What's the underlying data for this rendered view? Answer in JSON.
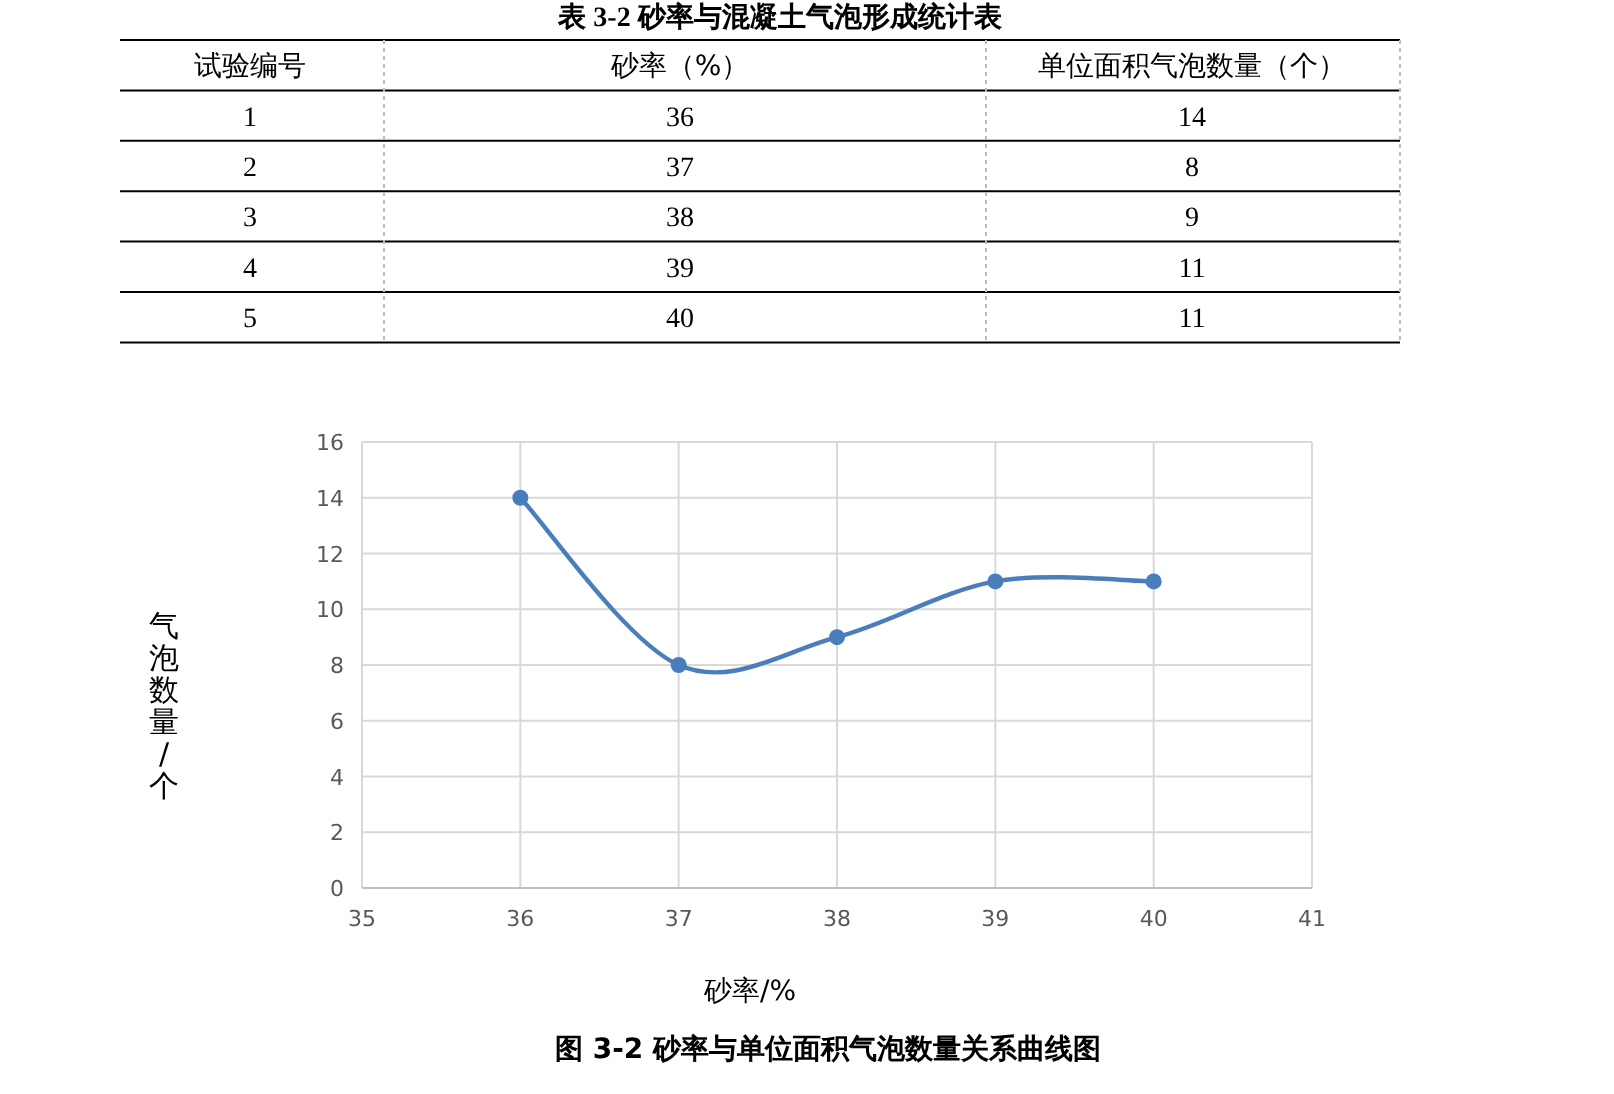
{
  "chart_data": {
    "type": "line",
    "title": "图 3-2 砂率与单位面积气泡数量关系曲线图",
    "xlabel": "砂率/%",
    "ylabel": "气泡数量/个",
    "annotations": [
      "表 3-2 砂率与混凝土气泡形成统计表",
      "试验编号",
      "砂率（%）",
      "单位面积气泡数量（个）",
      "1",
      "36",
      "14",
      "2",
      "37",
      "8",
      "3",
      "38",
      "9",
      "4",
      "39",
      "11",
      "5",
      "40",
      "11"
    ],
    "x": [
      36,
      37,
      38,
      39,
      40
    ],
    "series": [
      {
        "color": "#4a7ebb",
        "values": [
          14,
          8,
          9,
          11,
          11
        ]
      }
    ],
    "xlim": [
      35,
      41
    ],
    "xticks": [
      35,
      36,
      37,
      38,
      39,
      40,
      41
    ],
    "ylim": [
      0,
      16
    ],
    "yticks": [
      0,
      2,
      4,
      6,
      8,
      10,
      12,
      14,
      16
    ],
    "grid": true,
    "marker": "circle",
    "line_style": "solid"
  }
}
